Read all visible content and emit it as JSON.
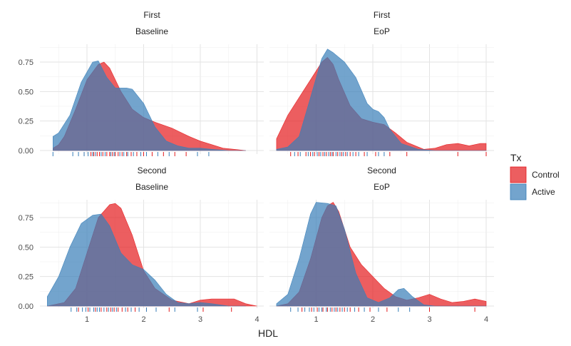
{
  "chart_data": {
    "type": "area",
    "subtype": "density with rug",
    "x_label": "HDL",
    "xlim": [
      0.3,
      4.0
    ],
    "x_ticks": [
      "1",
      "2",
      "3",
      "4"
    ],
    "ylim": [
      0,
      0.9
    ],
    "y_ticks": [
      "0.00",
      "0.25",
      "0.50",
      "0.75"
    ],
    "grid": true,
    "legend": {
      "title": "Tx",
      "position": "right",
      "entries": [
        {
          "name": "Control",
          "color": "#e41a1c"
        },
        {
          "name": "Active",
          "color": "#377eb8"
        }
      ]
    },
    "panels": [
      {
        "strip_top": "First",
        "strip_bottom": "Baseline",
        "series": [
          {
            "name": "Control",
            "x": [
              0.4,
              0.5,
              0.6,
              0.8,
              1.0,
              1.2,
              1.3,
              1.4,
              1.6,
              1.8,
              2.0,
              2.2,
              2.5,
              2.8,
              3.0,
              3.2,
              3.4,
              3.6,
              3.8
            ],
            "y": [
              0.02,
              0.05,
              0.12,
              0.35,
              0.6,
              0.73,
              0.75,
              0.7,
              0.5,
              0.35,
              0.28,
              0.24,
              0.19,
              0.12,
              0.08,
              0.05,
              0.02,
              0.01,
              0.0
            ]
          },
          {
            "name": "Active",
            "x": [
              0.4,
              0.5,
              0.7,
              0.9,
              1.1,
              1.2,
              1.35,
              1.5,
              1.7,
              1.8,
              2.0,
              2.2,
              2.4,
              2.6,
              2.8,
              3.0,
              3.2,
              3.5,
              3.8
            ],
            "y": [
              0.12,
              0.15,
              0.3,
              0.58,
              0.75,
              0.76,
              0.62,
              0.53,
              0.53,
              0.52,
              0.4,
              0.2,
              0.08,
              0.04,
              0.02,
              0.02,
              0.01,
              0.0,
              0.0
            ]
          }
        ],
        "rug": {
          "Control": [
            0.95,
            1.07,
            1.12,
            1.18,
            1.22,
            1.28,
            1.35,
            1.4,
            1.45,
            1.5,
            1.55,
            1.62,
            1.7,
            1.78,
            1.88,
            2.0,
            2.15,
            2.35,
            2.55,
            2.75
          ],
          "Active": [
            0.4,
            0.75,
            0.85,
            0.95,
            1.02,
            1.1,
            1.15,
            1.25,
            1.32,
            1.42,
            1.48,
            1.58,
            1.65,
            1.72,
            1.82,
            1.95,
            2.05,
            2.25,
            2.45,
            2.95,
            3.15
          ]
        }
      },
      {
        "strip_top": "First",
        "strip_bottom": "EoP",
        "series": [
          {
            "name": "Control",
            "x": [
              0.3,
              0.5,
              0.7,
              0.9,
              1.1,
              1.2,
              1.3,
              1.4,
              1.6,
              1.8,
              2.0,
              2.2,
              2.4,
              2.6,
              2.9,
              3.1,
              3.3,
              3.5,
              3.7,
              3.9,
              4.0
            ],
            "y": [
              0.1,
              0.3,
              0.45,
              0.6,
              0.75,
              0.79,
              0.73,
              0.6,
              0.38,
              0.27,
              0.24,
              0.22,
              0.15,
              0.07,
              0.01,
              0.02,
              0.05,
              0.06,
              0.04,
              0.06,
              0.06
            ]
          },
          {
            "name": "Active",
            "x": [
              0.3,
              0.5,
              0.7,
              0.9,
              1.1,
              1.2,
              1.3,
              1.5,
              1.7,
              1.9,
              2.0,
              2.1,
              2.2,
              2.3,
              2.5,
              2.8,
              3.1,
              3.5,
              4.0
            ],
            "y": [
              0.01,
              0.03,
              0.12,
              0.45,
              0.78,
              0.86,
              0.83,
              0.75,
              0.62,
              0.4,
              0.35,
              0.33,
              0.28,
              0.18,
              0.06,
              0.01,
              0.0,
              0.0,
              0.0
            ]
          }
        ],
        "rug": {
          "Control": [
            0.55,
            0.68,
            0.82,
            0.9,
            0.97,
            1.05,
            1.12,
            1.18,
            1.25,
            1.3,
            1.38,
            1.45,
            1.52,
            1.6,
            1.7,
            1.85,
            2.05,
            2.3,
            2.6,
            3.5,
            4.0
          ],
          "Active": [
            0.62,
            0.72,
            0.86,
            0.94,
            1.02,
            1.08,
            1.15,
            1.22,
            1.28,
            1.35,
            1.42,
            1.48,
            1.55,
            1.65,
            1.75,
            1.9,
            2.1,
            2.2
          ]
        }
      },
      {
        "strip_top": "Second",
        "strip_bottom": "Baseline",
        "series": [
          {
            "name": "Control",
            "x": [
              0.3,
              0.6,
              0.8,
              1.0,
              1.2,
              1.4,
              1.5,
              1.6,
              1.8,
              2.0,
              2.2,
              2.5,
              2.8,
              3.0,
              3.2,
              3.4,
              3.6,
              3.8,
              4.0
            ],
            "y": [
              0.0,
              0.03,
              0.15,
              0.45,
              0.75,
              0.86,
              0.87,
              0.83,
              0.6,
              0.3,
              0.15,
              0.05,
              0.02,
              0.05,
              0.06,
              0.06,
              0.06,
              0.02,
              0.0
            ]
          },
          {
            "name": "Active",
            "x": [
              0.3,
              0.5,
              0.7,
              0.9,
              1.1,
              1.25,
              1.4,
              1.6,
              1.8,
              2.0,
              2.2,
              2.4,
              2.6,
              2.8,
              3.0,
              3.2,
              3.5,
              3.8
            ],
            "y": [
              0.08,
              0.25,
              0.5,
              0.7,
              0.77,
              0.78,
              0.68,
              0.45,
              0.35,
              0.31,
              0.22,
              0.1,
              0.03,
              0.02,
              0.03,
              0.02,
              0.0,
              0.0
            ]
          }
        ],
        "rug": {
          "Control": [
            0.85,
            1.02,
            1.15,
            1.25,
            1.35,
            1.42,
            1.48,
            1.55,
            1.62,
            1.72,
            1.85,
            2.05,
            2.45,
            3.05,
            3.55
          ],
          "Active": [
            0.72,
            0.82,
            0.92,
            0.98,
            1.05,
            1.12,
            1.18,
            1.22,
            1.3,
            1.38,
            1.45,
            1.52,
            1.68,
            1.78,
            1.92,
            2.05,
            2.22,
            2.55,
            2.95
          ]
        }
      },
      {
        "strip_top": "Second",
        "strip_bottom": "EoP",
        "series": [
          {
            "name": "Control",
            "x": [
              0.3,
              0.5,
              0.7,
              0.9,
              1.1,
              1.2,
              1.3,
              1.4,
              1.6,
              1.8,
              2.0,
              2.2,
              2.4,
              2.6,
              2.8,
              3.0,
              3.2,
              3.4,
              3.6,
              3.8,
              4.0
            ],
            "y": [
              0.0,
              0.02,
              0.12,
              0.4,
              0.75,
              0.85,
              0.88,
              0.8,
              0.5,
              0.35,
              0.25,
              0.15,
              0.08,
              0.05,
              0.07,
              0.1,
              0.06,
              0.03,
              0.04,
              0.06,
              0.04
            ]
          },
          {
            "name": "Active",
            "x": [
              0.3,
              0.5,
              0.7,
              0.9,
              1.0,
              1.2,
              1.35,
              1.5,
              1.7,
              1.9,
              2.1,
              2.3,
              2.45,
              2.55,
              2.7,
              2.9,
              3.1,
              3.5,
              4.0
            ],
            "y": [
              0.02,
              0.1,
              0.4,
              0.78,
              0.88,
              0.87,
              0.85,
              0.65,
              0.28,
              0.07,
              0.03,
              0.07,
              0.14,
              0.15,
              0.08,
              0.01,
              0.0,
              0.0,
              0.0
            ]
          }
        ],
        "rug": {
          "Control": [
            0.75,
            0.92,
            1.02,
            1.12,
            1.2,
            1.28,
            1.35,
            1.42,
            1.5,
            1.6,
            1.75,
            1.95,
            2.25,
            3.0,
            3.8
          ],
          "Active": [
            0.55,
            0.68,
            0.8,
            0.88,
            0.96,
            1.05,
            1.1,
            1.18,
            1.25,
            1.32,
            1.38,
            1.46,
            1.55,
            1.68,
            1.85,
            2.1,
            2.45,
            2.65
          ]
        }
      }
    ]
  }
}
